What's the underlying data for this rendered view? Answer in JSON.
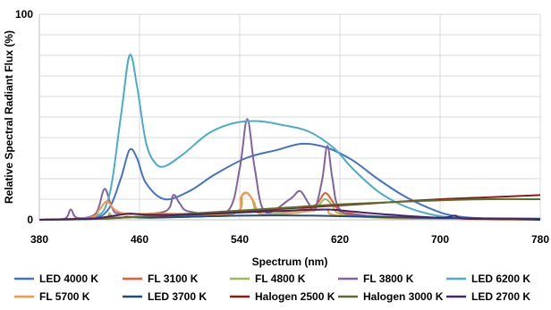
{
  "chart_data": {
    "type": "line",
    "title": "",
    "xlabel": "Spectrum (nm)",
    "ylabel": "Relative Spectral Radiant Flux (%)",
    "xlim": [
      380,
      780
    ],
    "ylim": [
      0,
      100
    ],
    "x_ticks": [
      380,
      460,
      540,
      620,
      700,
      780
    ],
    "y_ticks": [
      0,
      100
    ],
    "grid": true,
    "legend_position": "bottom",
    "series": [
      {
        "name": "LED 4000 K",
        "color": "#4472c4",
        "points": [
          [
            380,
            0
          ],
          [
            420,
            0.5
          ],
          [
            435,
            5
          ],
          [
            445,
            20
          ],
          [
            452,
            34
          ],
          [
            458,
            30
          ],
          [
            465,
            18
          ],
          [
            480,
            10
          ],
          [
            500,
            14
          ],
          [
            520,
            22
          ],
          [
            545,
            30
          ],
          [
            570,
            34
          ],
          [
            590,
            37
          ],
          [
            610,
            35
          ],
          [
            630,
            29
          ],
          [
            650,
            20
          ],
          [
            670,
            12
          ],
          [
            690,
            6
          ],
          [
            710,
            2
          ],
          [
            740,
            0.5
          ],
          [
            780,
            0
          ]
        ]
      },
      {
        "name": "FL 3100 K",
        "color": "#e15b3c",
        "points": [
          [
            380,
            0
          ],
          [
            430,
            1
          ],
          [
            436,
            3
          ],
          [
            442,
            1
          ],
          [
            480,
            2
          ],
          [
            535,
            3
          ],
          [
            542,
            12
          ],
          [
            546,
            13
          ],
          [
            550,
            10
          ],
          [
            556,
            3
          ],
          [
            580,
            4
          ],
          [
            600,
            7
          ],
          [
            608,
            13
          ],
          [
            614,
            9
          ],
          [
            620,
            4
          ],
          [
            630,
            3
          ],
          [
            650,
            1.5
          ],
          [
            700,
            0.5
          ],
          [
            780,
            0
          ]
        ]
      },
      {
        "name": "FL 4800 K",
        "color": "#9bbb59",
        "points": [
          [
            380,
            0
          ],
          [
            430,
            1
          ],
          [
            436,
            3
          ],
          [
            442,
            1
          ],
          [
            480,
            2
          ],
          [
            535,
            3
          ],
          [
            542,
            12
          ],
          [
            546,
            13
          ],
          [
            550,
            10
          ],
          [
            556,
            3
          ],
          [
            580,
            4
          ],
          [
            600,
            6
          ],
          [
            608,
            10
          ],
          [
            614,
            7
          ],
          [
            620,
            3
          ],
          [
            650,
            1
          ],
          [
            700,
            0.5
          ],
          [
            780,
            0
          ]
        ]
      },
      {
        "name": "FL 3800 K",
        "color": "#8064a2",
        "points": [
          [
            380,
            0
          ],
          [
            400,
            0.5
          ],
          [
            405,
            5
          ],
          [
            410,
            1
          ],
          [
            425,
            3
          ],
          [
            432,
            15
          ],
          [
            438,
            6
          ],
          [
            445,
            3
          ],
          [
            480,
            4
          ],
          [
            487,
            12
          ],
          [
            492,
            8
          ],
          [
            500,
            4
          ],
          [
            530,
            4
          ],
          [
            540,
            25
          ],
          [
            546,
            49
          ],
          [
            552,
            25
          ],
          [
            560,
            4
          ],
          [
            580,
            10
          ],
          [
            588,
            14
          ],
          [
            595,
            8
          ],
          [
            600,
            5
          ],
          [
            606,
            20
          ],
          [
            610,
            36
          ],
          [
            614,
            20
          ],
          [
            620,
            5
          ],
          [
            640,
            2
          ],
          [
            700,
            1
          ],
          [
            780,
            0
          ]
        ]
      },
      {
        "name": "LED 6200 K",
        "color": "#4bacc6",
        "points": [
          [
            380,
            0
          ],
          [
            420,
            1
          ],
          [
            435,
            10
          ],
          [
            445,
            50
          ],
          [
            452,
            80
          ],
          [
            458,
            65
          ],
          [
            465,
            38
          ],
          [
            472,
            28
          ],
          [
            480,
            26
          ],
          [
            495,
            32
          ],
          [
            515,
            42
          ],
          [
            535,
            47
          ],
          [
            555,
            48
          ],
          [
            575,
            46
          ],
          [
            595,
            43
          ],
          [
            615,
            35
          ],
          [
            630,
            25
          ],
          [
            650,
            14
          ],
          [
            670,
            7
          ],
          [
            690,
            3
          ],
          [
            710,
            1
          ],
          [
            740,
            0.5
          ],
          [
            780,
            0
          ]
        ]
      },
      {
        "name": "FL 5700 K",
        "color": "#f79646",
        "points": [
          [
            380,
            0
          ],
          [
            420,
            1
          ],
          [
            428,
            5
          ],
          [
            434,
            9
          ],
          [
            440,
            5
          ],
          [
            450,
            3
          ],
          [
            480,
            3
          ],
          [
            535,
            3
          ],
          [
            541,
            11
          ],
          [
            546,
            13
          ],
          [
            551,
            9
          ],
          [
            557,
            3
          ],
          [
            580,
            3
          ],
          [
            608,
            5
          ],
          [
            620,
            2
          ],
          [
            700,
            0.5
          ],
          [
            780,
            0
          ]
        ]
      },
      {
        "name": "LED 3700 K",
        "color": "#1f4e79",
        "points": [
          [
            380,
            0
          ],
          [
            420,
            0.3
          ],
          [
            445,
            1
          ],
          [
            450,
            1.5
          ],
          [
            470,
            1
          ],
          [
            540,
            2
          ],
          [
            600,
            2
          ],
          [
            680,
            1
          ],
          [
            780,
            0.5
          ]
        ]
      },
      {
        "name": "Halogen 2500 K",
        "color": "#8b1a1a",
        "points": [
          [
            380,
            0
          ],
          [
            420,
            0.5
          ],
          [
            460,
            1.5
          ],
          [
            500,
            2.5
          ],
          [
            540,
            4
          ],
          [
            580,
            5.5
          ],
          [
            620,
            7
          ],
          [
            660,
            8.5
          ],
          [
            700,
            10
          ],
          [
            740,
            11
          ],
          [
            780,
            12
          ]
        ]
      },
      {
        "name": "Halogen 3000 K",
        "color": "#5b6e2c",
        "points": [
          [
            380,
            0
          ],
          [
            420,
            0.5
          ],
          [
            460,
            1.5
          ],
          [
            500,
            3
          ],
          [
            540,
            4.5
          ],
          [
            580,
            6
          ],
          [
            620,
            7.5
          ],
          [
            660,
            8.5
          ],
          [
            700,
            9.5
          ],
          [
            740,
            10
          ],
          [
            780,
            10
          ]
        ]
      },
      {
        "name": "LED 2700 K",
        "color": "#4b2366",
        "points": [
          [
            380,
            0
          ],
          [
            420,
            0.5
          ],
          [
            440,
            2
          ],
          [
            452,
            3
          ],
          [
            465,
            2.5
          ],
          [
            500,
            2.5
          ],
          [
            540,
            3.5
          ],
          [
            580,
            4.5
          ],
          [
            610,
            5
          ],
          [
            630,
            4
          ],
          [
            660,
            2.5
          ],
          [
            700,
            1
          ],
          [
            712,
            2
          ],
          [
            720,
            0.5
          ],
          [
            760,
            0.3
          ],
          [
            780,
            0
          ]
        ]
      }
    ]
  }
}
